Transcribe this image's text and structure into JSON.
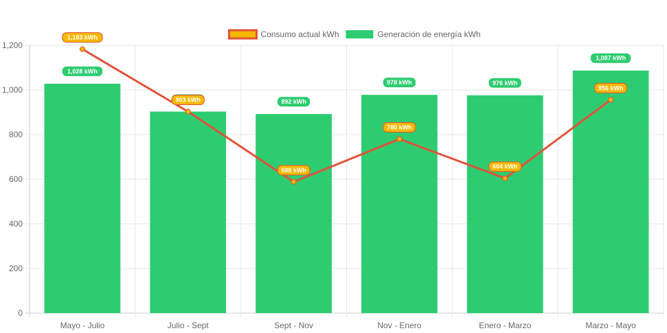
{
  "chart_data": {
    "type": "bar",
    "categories": [
      "Mayo - Julio",
      "Julio - Sept",
      "Sept - Nov",
      "Nov - Enero",
      "Enero - Marzo",
      "Marzo - Mayo"
    ],
    "series": [
      {
        "name": "Consumo actual kWh",
        "kind": "line",
        "values": [
          1183,
          903,
          588,
          780,
          604,
          956
        ],
        "labels": [
          "1,183 kWh",
          "903 kWh",
          "588 kWh",
          "780 kWh",
          "604 kWh",
          "956 kWh"
        ],
        "color": "#e0523a",
        "label_color": "#f5b800"
      },
      {
        "name": "Generación de energía kWh",
        "kind": "bar",
        "values": [
          1028,
          903,
          892,
          978,
          976,
          1087
        ],
        "labels": [
          "1,028 kWh",
          "903 kWh",
          "892 kWh",
          "978 kWh",
          "976 kWh",
          "1,087 kWh"
        ],
        "color": "#2ecc71"
      }
    ],
    "yticks": [
      "0",
      "200",
      "400",
      "600",
      "800",
      "1,000",
      "1,200"
    ],
    "ylim": [
      0,
      1200
    ],
    "grid": true,
    "legend_position": "top-center"
  }
}
